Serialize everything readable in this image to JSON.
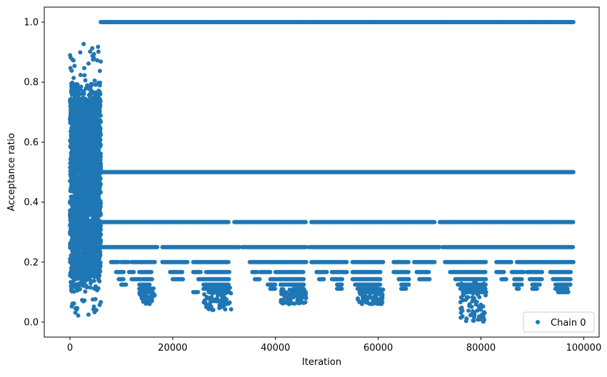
{
  "chart_data": {
    "type": "scatter",
    "title": "",
    "xlabel": "Iteration",
    "ylabel": "Acceptance ratio",
    "xlim": [
      -5000,
      103000
    ],
    "ylim": [
      -0.05,
      1.05
    ],
    "x_ticks": [
      0,
      20000,
      40000,
      60000,
      80000,
      100000
    ],
    "x_tick_labels": [
      "0",
      "20000",
      "40000",
      "60000",
      "80000",
      "100000"
    ],
    "y_ticks": [
      0.0,
      0.2,
      0.4,
      0.6,
      0.8,
      1.0
    ],
    "y_tick_labels": [
      "0.0",
      "0.2",
      "0.4",
      "0.6",
      "0.8",
      "1.0"
    ],
    "grid": false,
    "legend_position": "lower-right",
    "series": [
      {
        "name": "Chain 0",
        "color": "#1f77b4",
        "marker": "circle",
        "burn_in_end": 6000,
        "x_max": 98000,
        "levels": [
          {
            "y": 1.0,
            "x_ranges": [
              [
                6000,
                98000
              ]
            ]
          },
          {
            "y": 0.5,
            "x_ranges": [
              [
                6000,
                98000
              ]
            ]
          },
          {
            "y": 0.3333,
            "x_ranges": [
              [
                6000,
                31000
              ],
              [
                32000,
                46000
              ],
              [
                47000,
                71000
              ],
              [
                72000,
                98000
              ]
            ]
          },
          {
            "y": 0.25,
            "x_ranges": [
              [
                6000,
                17000
              ],
              [
                18000,
                33000
              ],
              [
                33500,
                46000
              ],
              [
                46500,
                72000
              ],
              [
                72500,
                98000
              ]
            ]
          },
          {
            "y": 0.2,
            "x_ranges": [
              [
                8000,
                9500
              ],
              [
                10000,
                11500
              ],
              [
                12000,
                16500
              ],
              [
                18000,
                23000
              ],
              [
                24000,
                31000
              ],
              [
                35000,
                46000
              ],
              [
                47000,
                54000
              ],
              [
                55000,
                61000
              ],
              [
                63000,
                66000
              ],
              [
                67000,
                71000
              ],
              [
                73000,
                81000
              ],
              [
                83000,
                86000
              ],
              [
                87000,
                98000
              ]
            ]
          },
          {
            "y": 0.1667,
            "x_ranges": [
              [
                9000,
                10500
              ],
              [
                11500,
                12500
              ],
              [
                13500,
                16000
              ],
              [
                19500,
                22000
              ],
              [
                24000,
                25500
              ],
              [
                26500,
                31000
              ],
              [
                35500,
                36500
              ],
              [
                37000,
                39000
              ],
              [
                40000,
                45500
              ],
              [
                48000,
                50000
              ],
              [
                51000,
                54000
              ],
              [
                55000,
                60500
              ],
              [
                63000,
                66000
              ],
              [
                67500,
                70000
              ],
              [
                74000,
                81000
              ],
              [
                83000,
                84500
              ],
              [
                86000,
                88500
              ],
              [
                89000,
                92000
              ],
              [
                93500,
                97500
              ]
            ]
          },
          {
            "y": 0.1429,
            "x_ranges": [
              [
                9500,
                10500
              ],
              [
                12000,
                16000
              ],
              [
                20000,
                22000
              ],
              [
                25000,
                31000
              ],
              [
                36000,
                37000
              ],
              [
                39000,
                45500
              ],
              [
                48500,
                49500
              ],
              [
                51000,
                53000
              ],
              [
                55000,
                60500
              ],
              [
                64000,
                66000
              ],
              [
                68000,
                70000
              ],
              [
                75000,
                81000
              ],
              [
                84000,
                85000
              ],
              [
                86500,
                88000
              ],
              [
                89500,
                92000
              ],
              [
                94000,
                97500
              ]
            ]
          },
          {
            "y": 0.125,
            "x_ranges": [
              [
                10000,
                11000
              ],
              [
                13500,
                15500
              ],
              [
                26000,
                31000
              ],
              [
                38500,
                40000
              ],
              [
                41000,
                45500
              ],
              [
                52000,
                53000
              ],
              [
                55500,
                60500
              ],
              [
                64500,
                66000
              ],
              [
                75500,
                81000
              ],
              [
                86500,
                88000
              ],
              [
                90000,
                91500
              ],
              [
                94500,
                97500
              ]
            ]
          },
          {
            "y": 0.1111,
            "x_ranges": [
              [
                13500,
                16000
              ],
              [
                26000,
                31000
              ],
              [
                39000,
                40000
              ],
              [
                43500,
                45500
              ],
              [
                52000,
                53000
              ],
              [
                56000,
                60000
              ],
              [
                64500,
                65500
              ],
              [
                76000,
                81000
              ],
              [
                87000,
                87500
              ],
              [
                90000,
                91000
              ],
              [
                94500,
                97000
              ]
            ]
          },
          {
            "y": 0.1,
            "x_ranges": [
              [
                14000,
                15500
              ],
              [
                24000,
                25000
              ],
              [
                27000,
                31000
              ],
              [
                44000,
                45500
              ],
              [
                56500,
                60000
              ],
              [
                76500,
                81000
              ],
              [
                95000,
                97000
              ]
            ]
          }
        ],
        "scatter_ranges": [
          {
            "x_range": [
              13500,
              16500
            ],
            "y_range": [
              0.06,
              0.12
            ]
          },
          {
            "x_range": [
              26000,
              31500
            ],
            "y_range": [
              0.04,
              0.12
            ]
          },
          {
            "x_range": [
              41000,
              46000
            ],
            "y_range": [
              0.06,
              0.11
            ]
          },
          {
            "x_range": [
              56000,
              61000
            ],
            "y_range": [
              0.06,
              0.11
            ]
          },
          {
            "x_range": [
              76000,
              81000
            ],
            "y_range": [
              0.0,
              0.14
            ]
          }
        ],
        "burn_in": {
          "x_range": [
            0,
            6000
          ],
          "y_range": [
            0.02,
            0.93
          ]
        }
      }
    ]
  }
}
